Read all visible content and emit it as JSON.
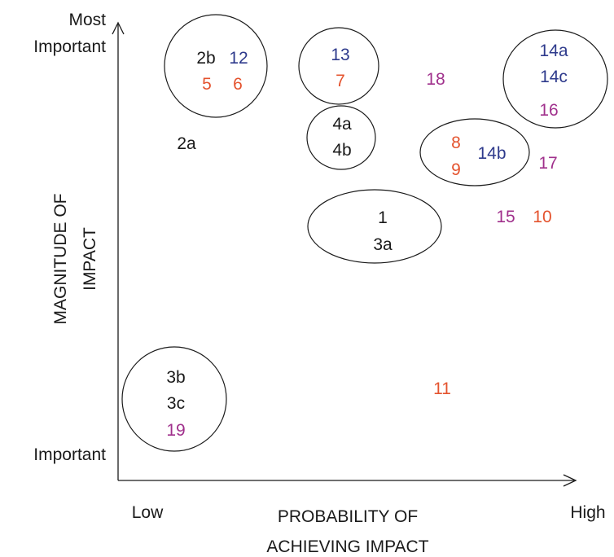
{
  "axes": {
    "y_top_label": [
      "Most",
      "Important"
    ],
    "y_bottom_label": "Important",
    "y_title": [
      "MAGNITUDE OF",
      "IMPACT"
    ],
    "x_low_label": "Low",
    "x_high_label": "High",
    "x_title": [
      "PROBABILITY OF",
      "ACHIEVING IMPACT"
    ]
  },
  "colors": {
    "black": "#1a1a1a",
    "blue": "#2e3a8c",
    "orange": "#e4532e",
    "purple": "#a0308c"
  },
  "items": [
    {
      "label": "2b",
      "color": "black"
    },
    {
      "label": "12",
      "color": "blue"
    },
    {
      "label": "5",
      "color": "orange"
    },
    {
      "label": "6",
      "color": "orange"
    },
    {
      "label": "13",
      "color": "blue"
    },
    {
      "label": "7",
      "color": "orange"
    },
    {
      "label": "18",
      "color": "purple"
    },
    {
      "label": "14a",
      "color": "blue"
    },
    {
      "label": "14c",
      "color": "blue"
    },
    {
      "label": "16",
      "color": "purple"
    },
    {
      "label": "4a",
      "color": "black"
    },
    {
      "label": "4b",
      "color": "black"
    },
    {
      "label": "2a",
      "color": "black"
    },
    {
      "label": "8",
      "color": "orange"
    },
    {
      "label": "9",
      "color": "orange"
    },
    {
      "label": "14b",
      "color": "blue"
    },
    {
      "label": "17",
      "color": "purple"
    },
    {
      "label": "1",
      "color": "black"
    },
    {
      "label": "3a",
      "color": "black"
    },
    {
      "label": "15",
      "color": "purple"
    },
    {
      "label": "10",
      "color": "orange"
    },
    {
      "label": "3b",
      "color": "black"
    },
    {
      "label": "3c",
      "color": "black"
    },
    {
      "label": "19",
      "color": "purple"
    },
    {
      "label": "11",
      "color": "orange"
    }
  ]
}
